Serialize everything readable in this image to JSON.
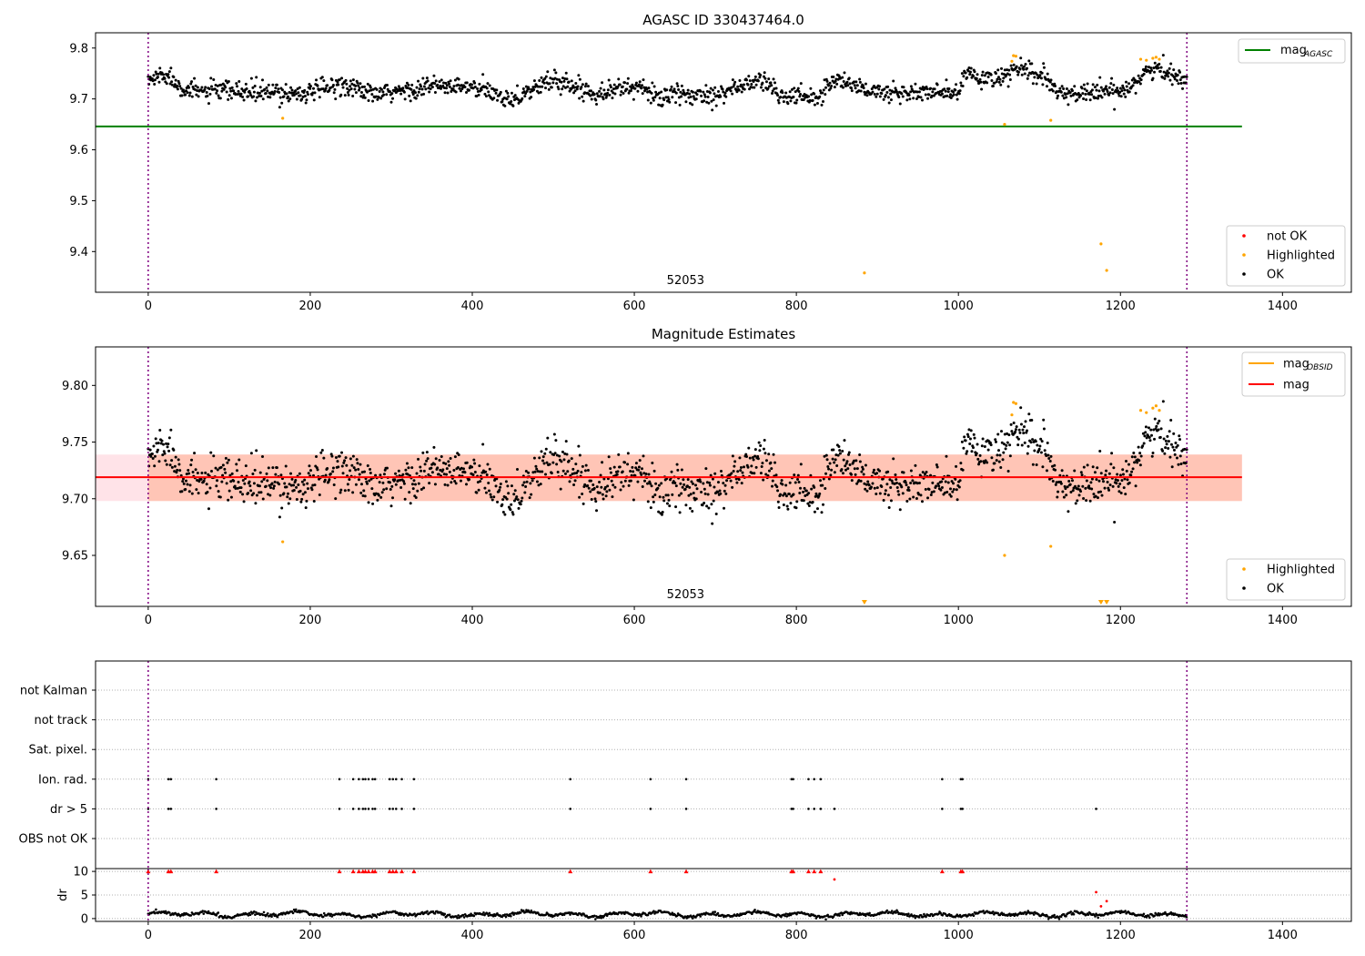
{
  "chart_data": [
    {
      "type": "scatter",
      "title": "AGASC ID 330437464.0",
      "xlim": [
        -65,
        1485
      ],
      "ylim": [
        9.32,
        9.83
      ],
      "x_ticks": [
        0,
        200,
        400,
        600,
        800,
        1000,
        1200,
        1400
      ],
      "y_ticks": [
        9.4,
        9.5,
        9.6,
        9.7,
        9.8
      ],
      "annotation": {
        "text": "52053",
        "x": 640
      },
      "vlines": [
        0,
        1282
      ],
      "hline": {
        "name": "mag",
        "sub": "AGASC",
        "y": 9.646,
        "x": [
          -65,
          1350
        ],
        "color": "#008000"
      },
      "legend_lines": [
        {
          "name": "mag",
          "sub": "AGASC",
          "color": "#008000"
        }
      ],
      "legend_points": [
        {
          "name": "not OK",
          "color": "#ff0000"
        },
        {
          "name": "Highlighted",
          "color": "#ffa500"
        },
        {
          "name": "OK",
          "color": "#000000"
        }
      ],
      "series": [
        {
          "name": "OK",
          "color": "#000000",
          "trend": [
            [
              0,
              9.735
            ],
            [
              20,
              9.75
            ],
            [
              50,
              9.715
            ],
            [
              100,
              9.715
            ],
            [
              150,
              9.712
            ],
            [
              200,
              9.712
            ],
            [
              240,
              9.73
            ],
            [
              280,
              9.707
            ],
            [
              350,
              9.725
            ],
            [
              400,
              9.722
            ],
            [
              450,
              9.7
            ],
            [
              500,
              9.738
            ],
            [
              550,
              9.712
            ],
            [
              600,
              9.725
            ],
            [
              630,
              9.705
            ],
            [
              700,
              9.71
            ],
            [
              760,
              9.738
            ],
            [
              780,
              9.705
            ],
            [
              830,
              9.705
            ],
            [
              845,
              9.74
            ],
            [
              900,
              9.712
            ],
            [
              950,
              9.712
            ],
            [
              1000,
              9.712
            ],
            [
              1010,
              9.75
            ],
            [
              1050,
              9.735
            ],
            [
              1070,
              9.76
            ],
            [
              1110,
              9.74
            ],
            [
              1120,
              9.71
            ],
            [
              1200,
              9.715
            ],
            [
              1240,
              9.76
            ],
            [
              1282,
              9.74
            ]
          ],
          "scatter": 0.012
        },
        {
          "name": "Highlighted",
          "color": "#ffa500",
          "points": [
            [
              166,
              9.662
            ],
            [
              884,
              9.358
            ],
            [
              1057,
              9.65
            ],
            [
              1066,
              9.774
            ],
            [
              1068,
              9.785
            ],
            [
              1071,
              9.784
            ],
            [
              1114,
              9.658
            ],
            [
              1176,
              9.415
            ],
            [
              1183,
              9.363
            ],
            [
              1225,
              9.778
            ],
            [
              1232,
              9.776
            ],
            [
              1240,
              9.78
            ],
            [
              1244,
              9.782
            ],
            [
              1248,
              9.778
            ]
          ]
        }
      ]
    },
    {
      "type": "scatter",
      "title": "Magnitude Estimates",
      "xlim": [
        -65,
        1485
      ],
      "ylim": [
        9.605,
        9.834
      ],
      "x_ticks": [
        0,
        200,
        400,
        600,
        800,
        1000,
        1200,
        1400
      ],
      "y_ticks": [
        9.65,
        9.7,
        9.75,
        9.8
      ],
      "annotation": {
        "text": "52053",
        "x": 640
      },
      "vlines": [
        0,
        1282
      ],
      "hline": {
        "name": "mag",
        "y": 9.719,
        "x": [
          -65,
          1350
        ],
        "color": "#ff0000"
      },
      "bands": [
        {
          "y": [
            9.698,
            9.739
          ],
          "x": [
            -65,
            1350
          ],
          "color": "#ffc0cb"
        },
        {
          "y": [
            9.698,
            9.739
          ],
          "x": [
            0,
            1350
          ],
          "color": "#ffa07a"
        }
      ],
      "legend_lines": [
        {
          "name": "mag",
          "sub": "OBSID",
          "color": "#ffa500"
        },
        {
          "name": "mag",
          "sub": "",
          "color": "#ff0000"
        }
      ],
      "legend_points": [
        {
          "name": "Highlighted",
          "color": "#ffa500"
        },
        {
          "name": "OK",
          "color": "#000000"
        }
      ],
      "series": [
        {
          "name": "OK",
          "color": "#000000",
          "trend": [
            [
              0,
              9.735
            ],
            [
              20,
              9.75
            ],
            [
              50,
              9.715
            ],
            [
              100,
              9.715
            ],
            [
              150,
              9.712
            ],
            [
              200,
              9.712
            ],
            [
              240,
              9.73
            ],
            [
              280,
              9.707
            ],
            [
              350,
              9.725
            ],
            [
              400,
              9.722
            ],
            [
              450,
              9.7
            ],
            [
              500,
              9.738
            ],
            [
              550,
              9.712
            ],
            [
              600,
              9.725
            ],
            [
              630,
              9.705
            ],
            [
              700,
              9.71
            ],
            [
              760,
              9.738
            ],
            [
              780,
              9.705
            ],
            [
              830,
              9.705
            ],
            [
              845,
              9.74
            ],
            [
              900,
              9.712
            ],
            [
              950,
              9.712
            ],
            [
              1000,
              9.712
            ],
            [
              1010,
              9.75
            ],
            [
              1050,
              9.735
            ],
            [
              1070,
              9.76
            ],
            [
              1110,
              9.74
            ],
            [
              1120,
              9.71
            ],
            [
              1200,
              9.715
            ],
            [
              1240,
              9.76
            ],
            [
              1282,
              9.74
            ]
          ],
          "scatter": 0.012
        },
        {
          "name": "Highlighted",
          "color": "#ffa500",
          "points": [
            [
              166,
              9.662
            ],
            [
              1057,
              9.65
            ],
            [
              1066,
              9.774
            ],
            [
              1068,
              9.785
            ],
            [
              1071,
              9.784
            ],
            [
              1114,
              9.658
            ],
            [
              1225,
              9.778
            ],
            [
              1232,
              9.776
            ],
            [
              1240,
              9.78
            ],
            [
              1244,
              9.782
            ],
            [
              1248,
              9.778
            ]
          ],
          "below_range": [
            884,
            1176,
            1183
          ]
        }
      ]
    },
    {
      "type": "scatter",
      "title": "",
      "xlim": [
        -65,
        1485
      ],
      "categories": [
        "OBS not OK",
        "dr > 5",
        "Ion. rad.",
        "Sat. pixel.",
        "not track",
        "not Kalman"
      ],
      "vlines": [
        0,
        1282
      ],
      "flags": {
        "dr > 5": [
          0,
          25,
          28,
          84,
          236,
          253,
          260,
          265,
          268,
          272,
          277,
          280,
          298,
          302,
          306,
          313,
          328,
          521,
          620,
          664,
          794,
          796,
          815,
          822,
          830,
          847,
          980,
          1003,
          1005,
          1170
        ],
        "Ion. rad.": [
          0,
          25,
          28,
          84,
          236,
          253,
          260,
          265,
          268,
          272,
          277,
          280,
          298,
          302,
          306,
          313,
          328,
          521,
          620,
          664,
          794,
          796,
          815,
          822,
          830,
          980,
          1003,
          1005
        ]
      }
    },
    {
      "type": "scatter",
      "title": "",
      "ylabel": "dr",
      "xlim": [
        -65,
        1485
      ],
      "ylim": [
        -0.6,
        10.6
      ],
      "x_ticks": [
        0,
        200,
        400,
        600,
        800,
        1000,
        1200,
        1400
      ],
      "y_ticks": [
        0,
        5,
        10
      ],
      "vlines": [
        0,
        1282
      ],
      "series": [
        {
          "name": "OK",
          "color": "#000000",
          "baseline": 0.9,
          "scatter": 0.35
        },
        {
          "name": "not OK",
          "color": "#ff0000",
          "points": [
            [
              847,
              8.3
            ],
            [
              1170,
              5.6
            ],
            [
              1183,
              3.7
            ],
            [
              1176,
              2.6
            ]
          ],
          "clipped": [
            0,
            25,
            28,
            84,
            236,
            253,
            260,
            265,
            268,
            272,
            277,
            280,
            298,
            302,
            306,
            313,
            328,
            521,
            620,
            664,
            794,
            796,
            815,
            822,
            830,
            980,
            1003,
            1005
          ]
        }
      ]
    }
  ]
}
